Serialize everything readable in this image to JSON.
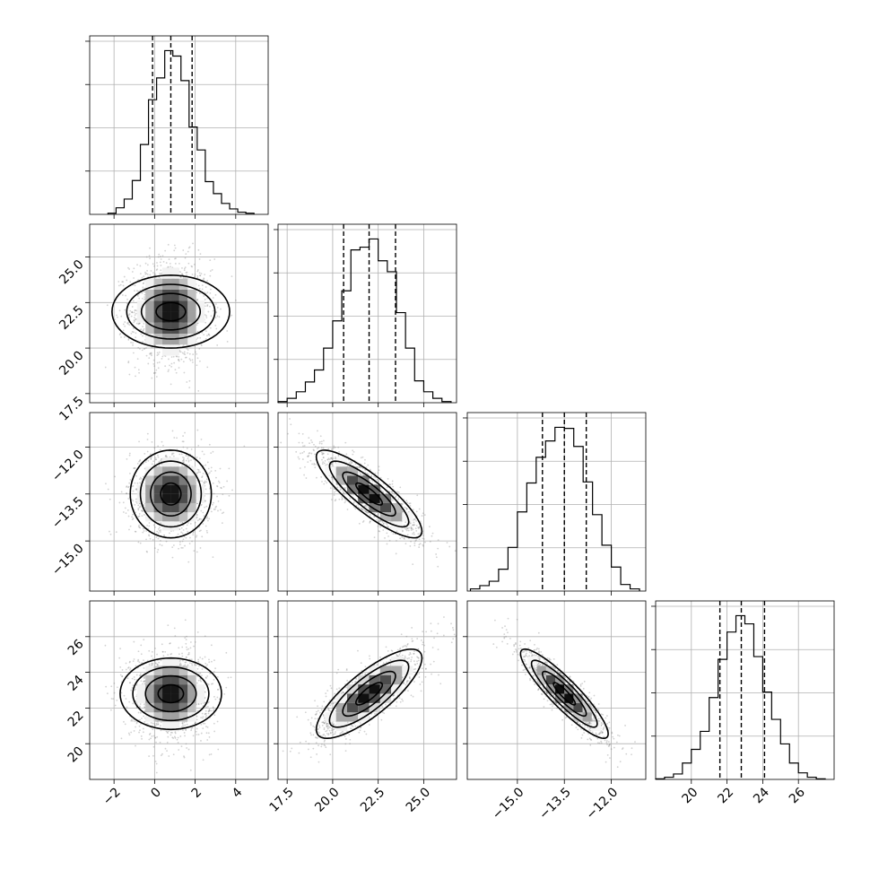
{
  "chart_data": {
    "type": "corner",
    "parameters": [
      {
        "index": 0,
        "xlim": [
          -3.2,
          5.6
        ],
        "ticks": [
          -2,
          0,
          2,
          4
        ],
        "tick_labels": [
          "−2",
          "0",
          "2",
          "4"
        ],
        "median": 0.8,
        "q16": -0.1,
        "q84": 1.85
      },
      {
        "index": 1,
        "xlim": [
          17.0,
          26.8
        ],
        "ticks": [
          17.5,
          20.0,
          22.5,
          25.0
        ],
        "tick_labels": [
          "17.5",
          "20.0",
          "22.5",
          "25.0"
        ],
        "median": 22.0,
        "q16": 20.6,
        "q84": 23.45
      },
      {
        "index": 2,
        "xlim": [
          -16.6,
          -10.9
        ],
        "ticks": [
          -15.0,
          -13.5,
          -12.0
        ],
        "tick_labels": [
          "−15.0",
          "−13.5",
          "−12.0"
        ],
        "median": -13.5,
        "q16": -14.2,
        "q84": -12.8
      },
      {
        "index": 3,
        "xlim": [
          18.0,
          28.0
        ],
        "ticks": [
          20,
          22,
          24,
          26
        ],
        "tick_labels": [
          "20",
          "22",
          "24",
          "26"
        ],
        "median": 22.8,
        "q16": 21.6,
        "q84": 24.1
      }
    ],
    "histograms": [
      {
        "param": 0,
        "edges": [
          -2.3,
          -1.9,
          -1.5,
          -1.1,
          -0.7,
          -0.3,
          0.1,
          0.5,
          0.9,
          1.3,
          1.7,
          2.1,
          2.5,
          2.9,
          3.3,
          3.7,
          4.1,
          4.5,
          4.9
        ],
        "counts": [
          2,
          12,
          28,
          62,
          128,
          210,
          250,
          300,
          290,
          245,
          160,
          118,
          60,
          38,
          20,
          10,
          4,
          2
        ]
      },
      {
        "param": 1,
        "edges": [
          17.0,
          17.5,
          18.0,
          18.5,
          19.0,
          19.5,
          20.0,
          20.5,
          21.0,
          21.5,
          22.0,
          22.5,
          23.0,
          23.5,
          24.0,
          24.5,
          25.0,
          25.5,
          26.0,
          26.5
        ],
        "counts": [
          2,
          8,
          20,
          38,
          60,
          100,
          150,
          205,
          280,
          285,
          300,
          260,
          240,
          165,
          100,
          40,
          20,
          8,
          2
        ]
      },
      {
        "param": 2,
        "edges": [
          -16.5,
          -16.2,
          -15.9,
          -15.6,
          -15.3,
          -15.0,
          -14.7,
          -14.4,
          -14.1,
          -13.8,
          -13.5,
          -13.2,
          -12.9,
          -12.6,
          -12.3,
          -12.0,
          -11.7,
          -11.4,
          -11.1
        ],
        "counts": [
          4,
          10,
          18,
          40,
          80,
          145,
          198,
          245,
          275,
          300,
          298,
          265,
          200,
          140,
          84,
          44,
          12,
          4
        ]
      },
      {
        "param": 3,
        "edges": [
          18.0,
          18.5,
          19.0,
          19.5,
          20.0,
          20.5,
          21.0,
          21.5,
          22.0,
          22.5,
          23.0,
          23.5,
          24.0,
          24.5,
          25.0,
          25.5,
          26.0,
          26.5,
          27.0,
          27.5
        ],
        "counts": [
          1,
          4,
          10,
          30,
          55,
          88,
          150,
          220,
          270,
          300,
          285,
          225,
          160,
          110,
          65,
          30,
          12,
          4,
          1
        ]
      }
    ],
    "pairs": [
      {
        "x": 0,
        "y": 1,
        "mean": [
          0.8,
          22.0
        ],
        "sd": [
          1.0,
          1.45
        ],
        "corr": 0.0
      },
      {
        "x": 0,
        "y": 2,
        "mean": [
          0.8,
          -13.5
        ],
        "sd": [
          1.0,
          0.7
        ],
        "corr": 0.0
      },
      {
        "x": 1,
        "y": 2,
        "mean": [
          22.0,
          -13.5
        ],
        "sd": [
          1.45,
          0.7
        ],
        "corr": -0.85
      },
      {
        "x": 0,
        "y": 3,
        "mean": [
          0.8,
          22.8
        ],
        "sd": [
          1.0,
          1.25
        ],
        "corr": 0.0
      },
      {
        "x": 1,
        "y": 3,
        "mean": [
          22.0,
          22.8
        ],
        "sd": [
          1.45,
          1.25
        ],
        "corr": 0.8
      },
      {
        "x": 2,
        "y": 3,
        "mean": [
          -13.5,
          22.8
        ],
        "sd": [
          0.7,
          1.25
        ],
        "corr": -0.9
      }
    ],
    "contour_levels_sigma": [
      0.5,
      1.0,
      1.5,
      2.0
    ],
    "grid": true,
    "quantile_line_style": "dashed"
  }
}
